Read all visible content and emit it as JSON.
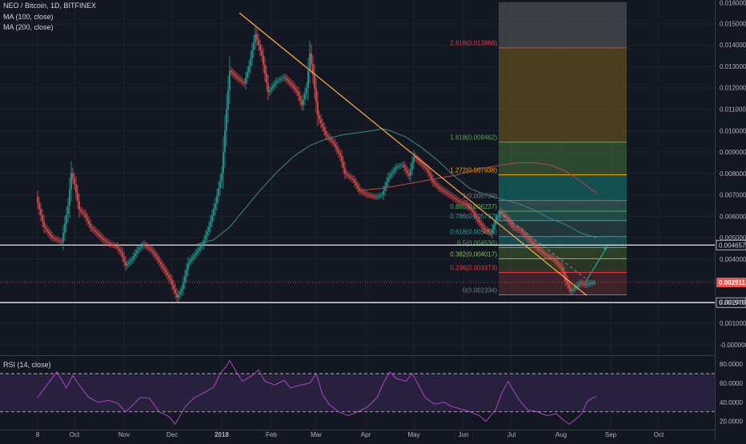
{
  "header": {
    "symbol_line": "NEO / Bitcoin, 1D, BITFINEX",
    "ma1_label": "MA (100, close)",
    "ma2_label": "MA (200, close)"
  },
  "rsi": {
    "label": "RSI (14, close)",
    "ticks": [
      "80.0000",
      "60.0000",
      "40.0000",
      "20.0000"
    ],
    "tick_values": [
      80,
      60,
      40,
      20
    ],
    "band_upper": 70,
    "band_lower": 30,
    "range": [
      13,
      86
    ]
  },
  "price_axis": {
    "ticks": [
      "0.015000",
      "0.014000",
      "0.013000",
      "0.012000",
      "0.011000",
      "0.010000",
      "0.009000",
      "0.008000",
      "0.007000",
      "0.006000",
      "0.005000",
      "0.004000",
      "0.003000",
      "0.002000",
      "0.001000",
      "-0.000000"
    ],
    "tick_values": [
      0.015,
      0.014,
      0.013,
      0.012,
      0.011,
      0.01,
      0.009,
      0.008,
      0.007,
      0.006,
      0.005,
      0.004,
      0.003,
      0.002,
      0.001,
      0.0
    ],
    "top_label": "0.016000",
    "top_value": 0.016,
    "range": [
      -0.00045,
      0.0161
    ]
  },
  "date_axis": {
    "labels": [
      "8",
      "Oct",
      "Nov",
      "Dec",
      "2018",
      "Feb",
      "Mar",
      "Apr",
      "May",
      "Jun",
      "Jul",
      "Aug",
      "Sep",
      "Oct"
    ],
    "label_day_index": [
      0,
      23,
      54,
      84,
      115,
      146,
      174,
      205,
      235,
      266,
      296,
      327,
      358,
      388
    ]
  },
  "current_price_label": "0.002911",
  "current_price_value": 0.002911,
  "horizontal_levels": [
    {
      "label": "0.004657",
      "value": 0.004657
    },
    {
      "label": "0.001970",
      "value": 0.00197
    }
  ],
  "fib": {
    "start_day": 288,
    "end_day": 368,
    "levels": [
      {
        "label": "2.618(0.013868)",
        "value": 0.013868,
        "color": "#f23645"
      },
      {
        "label": "1.618(0.009462)",
        "value": 0.009462,
        "color": "#4caf50"
      },
      {
        "label": "1.272(0.007938)",
        "value": 0.007938,
        "color": "#f7a600"
      },
      {
        "label": "1(0.006739)",
        "value": 0.006739,
        "color": "#787b86"
      },
      {
        "label": "0.886(0.006237)",
        "value": 0.006237,
        "color": "#4caf50"
      },
      {
        "label": "0.786(0.005797)",
        "value": 0.005797,
        "color": "#26a69a"
      },
      {
        "label": "0.618(0.005056)",
        "value": 0.005056,
        "color": "#26a69a"
      },
      {
        "label": "0.5(0.004536)",
        "value": 0.004536,
        "color": "#4caf50"
      },
      {
        "label": "0.382(0.004017)",
        "value": 0.004017,
        "color": "#8bc34a"
      },
      {
        "label": "0.236(0.003373)",
        "value": 0.003373,
        "color": "#f23645"
      },
      {
        "label": "0(0.002334)",
        "value": 0.002334,
        "color": "#787b86"
      }
    ],
    "top_value": 0.016
  },
  "chart_data": {
    "type": "line",
    "title": "NEO / Bitcoin, 1D, BITFINEX",
    "x_unit": "days since chart start (left edge of visible range)",
    "series": [
      {
        "name": "close",
        "points": [
          [
            0,
            0.0069
          ],
          [
            5,
            0.0055
          ],
          [
            10,
            0.005
          ],
          [
            16,
            0.0048
          ],
          [
            20,
            0.0065
          ],
          [
            22,
            0.008
          ],
          [
            24,
            0.0075
          ],
          [
            27,
            0.0063
          ],
          [
            30,
            0.0061
          ],
          [
            34,
            0.0055
          ],
          [
            38,
            0.0052
          ],
          [
            42,
            0.0049
          ],
          [
            46,
            0.0047
          ],
          [
            50,
            0.0046
          ],
          [
            53,
            0.0043
          ],
          [
            56,
            0.0037
          ],
          [
            60,
            0.004
          ],
          [
            63,
            0.0044
          ],
          [
            67,
            0.0047
          ],
          [
            72,
            0.0044
          ],
          [
            75,
            0.0041
          ],
          [
            80,
            0.0035
          ],
          [
            84,
            0.003
          ],
          [
            88,
            0.0022
          ],
          [
            91,
            0.0026
          ],
          [
            95,
            0.0038
          ],
          [
            100,
            0.0043
          ],
          [
            104,
            0.0047
          ],
          [
            108,
            0.0055
          ],
          [
            112,
            0.0066
          ],
          [
            116,
            0.008
          ],
          [
            119,
            0.011
          ],
          [
            121,
            0.0128
          ],
          [
            125,
            0.0125
          ],
          [
            130,
            0.0122
          ],
          [
            133,
            0.013
          ],
          [
            137,
            0.0145
          ],
          [
            141,
            0.0135
          ],
          [
            145,
            0.0118
          ],
          [
            150,
            0.0123
          ],
          [
            155,
            0.0125
          ],
          [
            160,
            0.0121
          ],
          [
            163,
            0.0118
          ],
          [
            166,
            0.0112
          ],
          [
            169,
            0.012
          ],
          [
            171,
            0.0136
          ],
          [
            173,
            0.0126
          ],
          [
            176,
            0.0107
          ],
          [
            181,
            0.0098
          ],
          [
            186,
            0.0094
          ],
          [
            190,
            0.0088
          ],
          [
            193,
            0.008
          ],
          [
            198,
            0.0077
          ],
          [
            202,
            0.0072
          ],
          [
            207,
            0.007
          ],
          [
            212,
            0.0069
          ],
          [
            216,
            0.007
          ],
          [
            220,
            0.0078
          ],
          [
            225,
            0.0083
          ],
          [
            229,
            0.0084
          ],
          [
            233,
            0.0079
          ],
          [
            236,
            0.0088
          ],
          [
            240,
            0.0085
          ],
          [
            244,
            0.0082
          ],
          [
            248,
            0.0076
          ],
          [
            252,
            0.0073
          ],
          [
            256,
            0.0071
          ],
          [
            260,
            0.0069
          ],
          [
            264,
            0.0067
          ],
          [
            268,
            0.0066
          ],
          [
            272,
            0.0063
          ],
          [
            276,
            0.0058
          ],
          [
            280,
            0.0054
          ],
          [
            284,
            0.0052
          ],
          [
            287,
            0.0058
          ],
          [
            290,
            0.0062
          ],
          [
            294,
            0.0059
          ],
          [
            298,
            0.0055
          ],
          [
            303,
            0.0053
          ],
          [
            308,
            0.0049
          ],
          [
            313,
            0.0045
          ],
          [
            318,
            0.0042
          ],
          [
            323,
            0.004
          ],
          [
            328,
            0.0036
          ],
          [
            331,
            0.003
          ],
          [
            334,
            0.0025
          ],
          [
            337,
            0.0027
          ],
          [
            340,
            0.0029
          ],
          [
            343,
            0.0028
          ],
          [
            347,
            0.0029
          ],
          [
            349,
            0.0029
          ]
        ]
      },
      {
        "name": "MA (100, close)",
        "points": [
          [
            100,
            0.0047
          ],
          [
            110,
            0.0049
          ],
          [
            120,
            0.0055
          ],
          [
            130,
            0.0064
          ],
          [
            140,
            0.0073
          ],
          [
            150,
            0.0081
          ],
          [
            160,
            0.0088
          ],
          [
            170,
            0.0093
          ],
          [
            180,
            0.0096
          ],
          [
            190,
            0.0098
          ],
          [
            200,
            0.0099
          ],
          [
            210,
            0.01
          ],
          [
            215,
            0.0101
          ],
          [
            220,
            0.01
          ],
          [
            230,
            0.0097
          ],
          [
            240,
            0.0092
          ],
          [
            250,
            0.0086
          ],
          [
            260,
            0.0079
          ],
          [
            270,
            0.0073
          ],
          [
            280,
            0.007
          ],
          [
            290,
            0.0068
          ],
          [
            300,
            0.0066
          ],
          [
            310,
            0.0063
          ],
          [
            320,
            0.0059
          ],
          [
            330,
            0.0056
          ],
          [
            340,
            0.0052
          ],
          [
            349,
            0.005
          ]
        ]
      },
      {
        "name": "MA (200, close)",
        "points": [
          [
            200,
            0.0072
          ],
          [
            215,
            0.0073
          ],
          [
            230,
            0.0075
          ],
          [
            245,
            0.0077
          ],
          [
            260,
            0.0079
          ],
          [
            275,
            0.0082
          ],
          [
            290,
            0.0084
          ],
          [
            300,
            0.0085
          ],
          [
            310,
            0.0085
          ],
          [
            320,
            0.0084
          ],
          [
            330,
            0.0081
          ],
          [
            340,
            0.0076
          ],
          [
            345,
            0.0073
          ],
          [
            349,
            0.0071
          ]
        ]
      },
      {
        "name": "RSI (14, close)",
        "points": [
          [
            0,
            45
          ],
          [
            8,
            63
          ],
          [
            12,
            72
          ],
          [
            18,
            55
          ],
          [
            22,
            68
          ],
          [
            26,
            58
          ],
          [
            32,
            45
          ],
          [
            38,
            40
          ],
          [
            44,
            42
          ],
          [
            50,
            39
          ],
          [
            55,
            30
          ],
          [
            60,
            38
          ],
          [
            64,
            45
          ],
          [
            70,
            44
          ],
          [
            76,
            30
          ],
          [
            82,
            25
          ],
          [
            86,
            17
          ],
          [
            92,
            35
          ],
          [
            98,
            45
          ],
          [
            104,
            50
          ],
          [
            110,
            56
          ],
          [
            114,
            70
          ],
          [
            118,
            78
          ],
          [
            120,
            84
          ],
          [
            124,
            72
          ],
          [
            128,
            62
          ],
          [
            134,
            68
          ],
          [
            138,
            74
          ],
          [
            142,
            62
          ],
          [
            148,
            58
          ],
          [
            154,
            63
          ],
          [
            158,
            55
          ],
          [
            164,
            58
          ],
          [
            170,
            60
          ],
          [
            174,
            70
          ],
          [
            178,
            48
          ],
          [
            182,
            38
          ],
          [
            188,
            30
          ],
          [
            194,
            26
          ],
          [
            200,
            30
          ],
          [
            206,
            35
          ],
          [
            212,
            45
          ],
          [
            216,
            60
          ],
          [
            220,
            72
          ],
          [
            224,
            65
          ],
          [
            230,
            62
          ],
          [
            234,
            70
          ],
          [
            238,
            58
          ],
          [
            242,
            45
          ],
          [
            248,
            38
          ],
          [
            254,
            40
          ],
          [
            258,
            36
          ],
          [
            264,
            33
          ],
          [
            270,
            30
          ],
          [
            276,
            26
          ],
          [
            280,
            20
          ],
          [
            286,
            32
          ],
          [
            290,
            50
          ],
          [
            294,
            62
          ],
          [
            298,
            50
          ],
          [
            302,
            40
          ],
          [
            306,
            32
          ],
          [
            312,
            30
          ],
          [
            318,
            26
          ],
          [
            324,
            28
          ],
          [
            328,
            22
          ],
          [
            332,
            17
          ],
          [
            336,
            22
          ],
          [
            340,
            28
          ],
          [
            343,
            40
          ],
          [
            346,
            44
          ],
          [
            349,
            46
          ]
        ]
      }
    ],
    "annotations": [
      {
        "type": "trendline",
        "points": [
          [
            126,
            0.0155
          ],
          [
            343,
            0.0023
          ]
        ]
      },
      {
        "type": "dashed_channel",
        "points": [
          [
            288,
            0.0062
          ],
          [
            344,
            0.003
          ]
        ]
      },
      {
        "type": "arrow_projection",
        "points": [
          [
            342,
            0.0029
          ],
          [
            356,
            0.0046
          ]
        ]
      }
    ]
  },
  "colors": {
    "background": "#131722",
    "up": "#26a69a",
    "down": "#ef5350",
    "ma100": "#3c8a87",
    "ma200": "#b2444a",
    "trendline": "#f3a447",
    "rsi": "#b044c8",
    "rsi_band": "#2a2240",
    "grid": "#1e2230"
  }
}
